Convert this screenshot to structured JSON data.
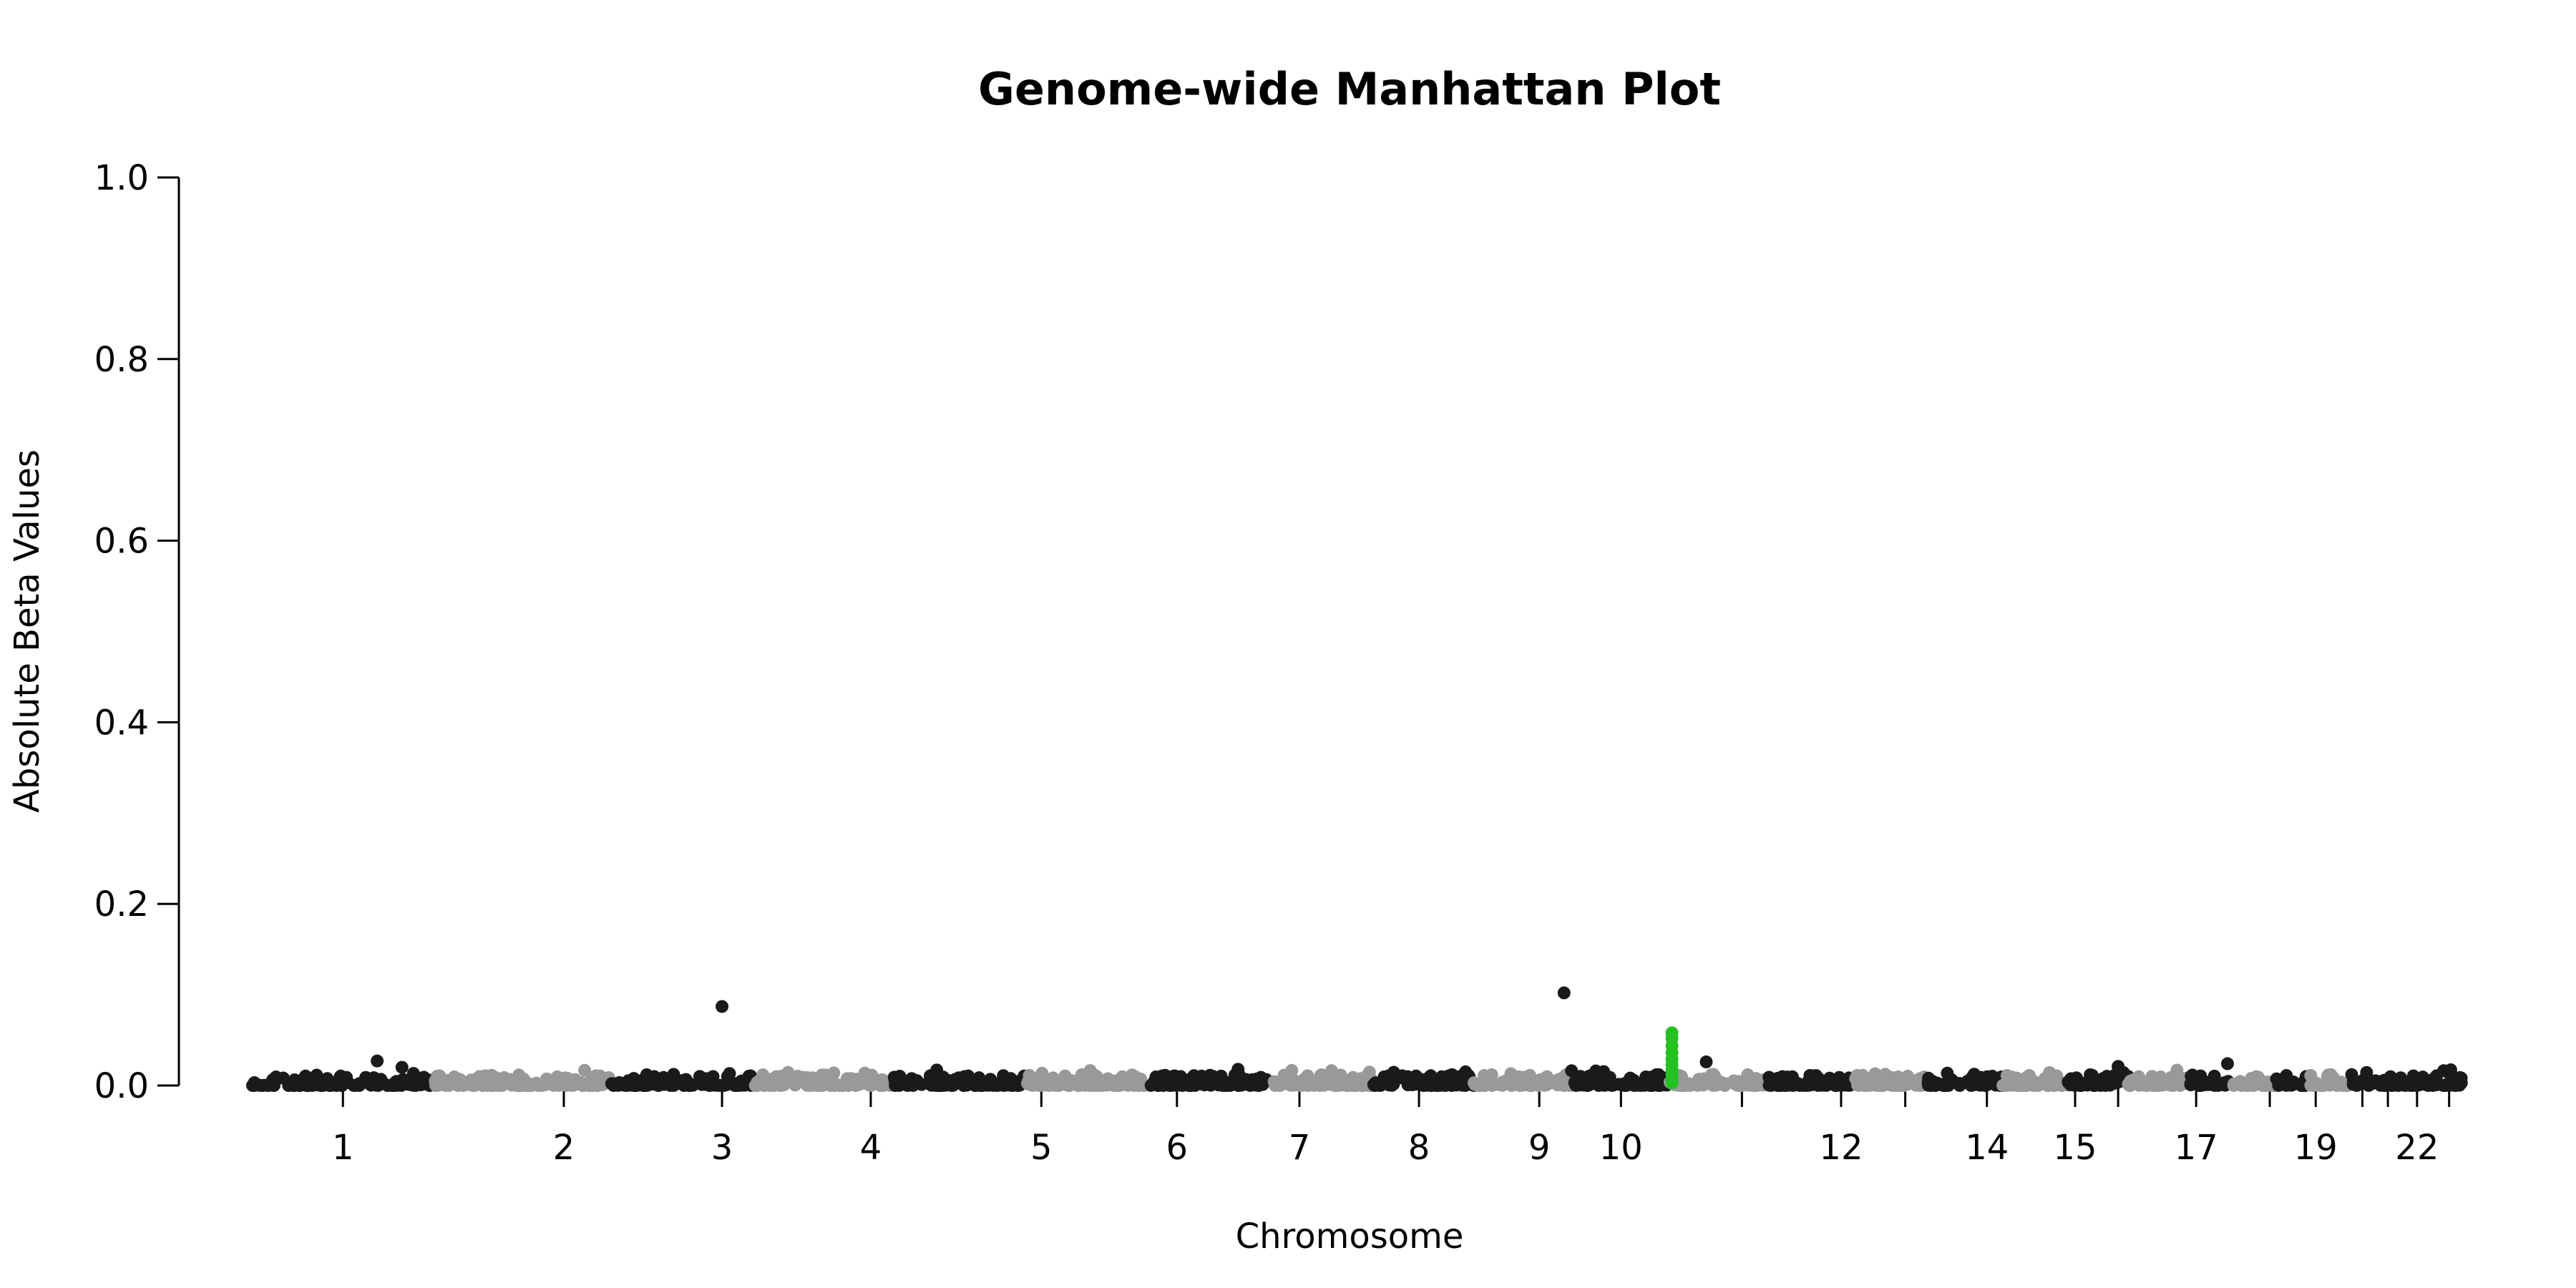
{
  "chart_data": {
    "type": "scatter",
    "title": "Genome-wide Manhattan Plot",
    "xlabel": "Chromosome",
    "ylabel": "Absolute Beta Values",
    "ylim": [
      0,
      1.0
    ],
    "yticks": [
      "0.0",
      "0.2",
      "0.4",
      "0.6",
      "0.8",
      "1.0"
    ],
    "ytick_values": [
      0,
      0.2,
      0.4,
      0.6,
      0.8,
      1.0
    ],
    "grid": false,
    "legend": "none",
    "colors": {
      "odd": "#1a1a1a",
      "even": "#999999",
      "highlight": "#22c31f"
    },
    "chromosomes": [
      {
        "label": "1",
        "start": 0,
        "end": 250,
        "tick": 125
      },
      {
        "label": "2",
        "start": 250,
        "end": 492,
        "tick": 428
      },
      {
        "label": "3",
        "start": 492,
        "end": 690,
        "tick": 645
      },
      {
        "label": "4",
        "start": 690,
        "end": 881,
        "tick": 849
      },
      {
        "label": "5",
        "start": 881,
        "end": 1062,
        "tick": 1083
      },
      {
        "label": "6",
        "start": 1062,
        "end": 1233,
        "tick": 1269
      },
      {
        "label": "7",
        "start": 1233,
        "end": 1392,
        "tick": 1437
      },
      {
        "label": "8",
        "start": 1392,
        "end": 1538,
        "tick": 1601
      },
      {
        "label": "9",
        "start": 1538,
        "end": 1676,
        "tick": 1766
      },
      {
        "label": "10",
        "start": 1676,
        "end": 1810,
        "tick": 1878
      },
      {
        "label": "",
        "start": 1810,
        "end": 1945,
        "tick": 2044
      },
      {
        "label": "12",
        "start": 1945,
        "end": 2078,
        "tick": 2180
      },
      {
        "label": "",
        "start": 2078,
        "end": 2192,
        "tick": 2268
      },
      {
        "label": "14",
        "start": 2192,
        "end": 2299,
        "tick": 2380
      },
      {
        "label": "15",
        "start": 2299,
        "end": 2401,
        "tick": 2501
      },
      {
        "label": "",
        "start": 2401,
        "end": 2491,
        "tick": 2560
      },
      {
        "label": "17",
        "start": 2491,
        "end": 2574,
        "tick": 2667
      },
      {
        "label": "",
        "start": 2574,
        "end": 2654,
        "tick": 2768
      },
      {
        "label": "19",
        "start": 2654,
        "end": 2713,
        "tick": 2831
      },
      {
        "label": "",
        "start": 2713,
        "end": 2777,
        "tick": 2895
      },
      {
        "label": "",
        "start": 2777,
        "end": 2824,
        "tick": 2930
      },
      {
        "label": "22",
        "start": 2824,
        "end": 2875,
        "tick": 2970
      },
      {
        "label": "",
        "start": 2875,
        "end": 3031,
        "tick": 3014
      }
    ],
    "x_range": [
      -100,
      3031
    ],
    "highlight_points": [
      {
        "x": 1948,
        "y": 0.058
      },
      {
        "x": 1948,
        "y": 0.052
      },
      {
        "x": 1948,
        "y": 0.044
      },
      {
        "x": 1948,
        "y": 0.036
      },
      {
        "x": 1948,
        "y": 0.029
      },
      {
        "x": 1948,
        "y": 0.023
      },
      {
        "x": 1948,
        "y": 0.017
      },
      {
        "x": 1948,
        "y": 0.012
      },
      {
        "x": 1948,
        "y": 0.007
      },
      {
        "x": 1948,
        "y": 0.003
      }
    ],
    "notable_points": [
      {
        "x": 645,
        "y": 0.087
      },
      {
        "x": 1800,
        "y": 0.102
      },
      {
        "x": 1995,
        "y": 0.026
      },
      {
        "x": 2710,
        "y": 0.024
      },
      {
        "x": 2560,
        "y": 0.021
      },
      {
        "x": 172,
        "y": 0.027
      },
      {
        "x": 206,
        "y": 0.02
      }
    ]
  }
}
